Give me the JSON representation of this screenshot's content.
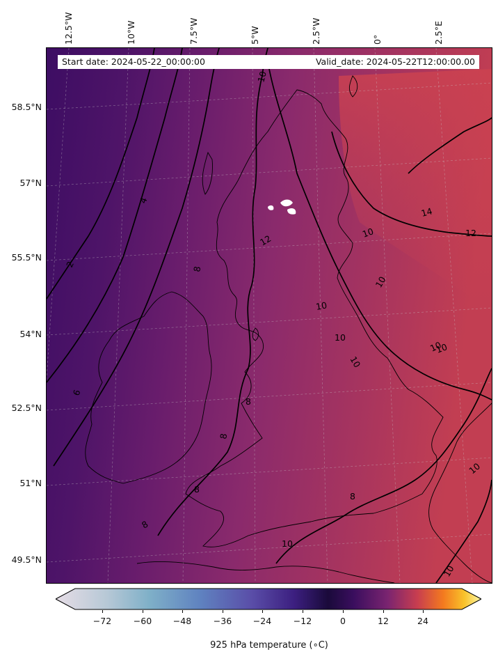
{
  "header": {
    "start_date": "Start date: 2024-05-22_00:00:00",
    "valid_date": "Valid_date: 2024-05-22T12:00:00.00"
  },
  "axes": {
    "longitude_labels": [
      "12.5°W",
      "10°W",
      "7.5°W",
      "5°W",
      "2.5°W",
      "0°",
      "2.5°E"
    ],
    "latitude_labels": [
      "58.5°N",
      "57°N",
      "55.5°N",
      "54°N",
      "52.5°N",
      "51°N",
      "49.5°N"
    ]
  },
  "contour_labels": [
    "10",
    "14",
    "12",
    "12",
    "10",
    "10",
    "10",
    "10",
    "10",
    "10",
    "10",
    "8",
    "8",
    "8",
    "8",
    "8",
    "10",
    "10",
    "10",
    "6",
    "2",
    "4",
    "8"
  ],
  "colorbar": {
    "label": "925 hPa temperature ($^\\circ$C)",
    "label_display": "925 hPa temperature (∘C)",
    "ticks": [
      "−72",
      "−60",
      "−48",
      "−36",
      "−24",
      "−12",
      "0",
      "12",
      "24"
    ],
    "tick_values": [
      -72,
      -60,
      -48,
      -36,
      -24,
      -12,
      0,
      12,
      24
    ],
    "range": [
      -84,
      36
    ],
    "colormap": "inferno-like diverging"
  },
  "colors": {
    "cold_fill": "#3d0d63",
    "mid_fill": "#7a2470",
    "warm_fill": "#c8404e",
    "contour": "#000000"
  }
}
